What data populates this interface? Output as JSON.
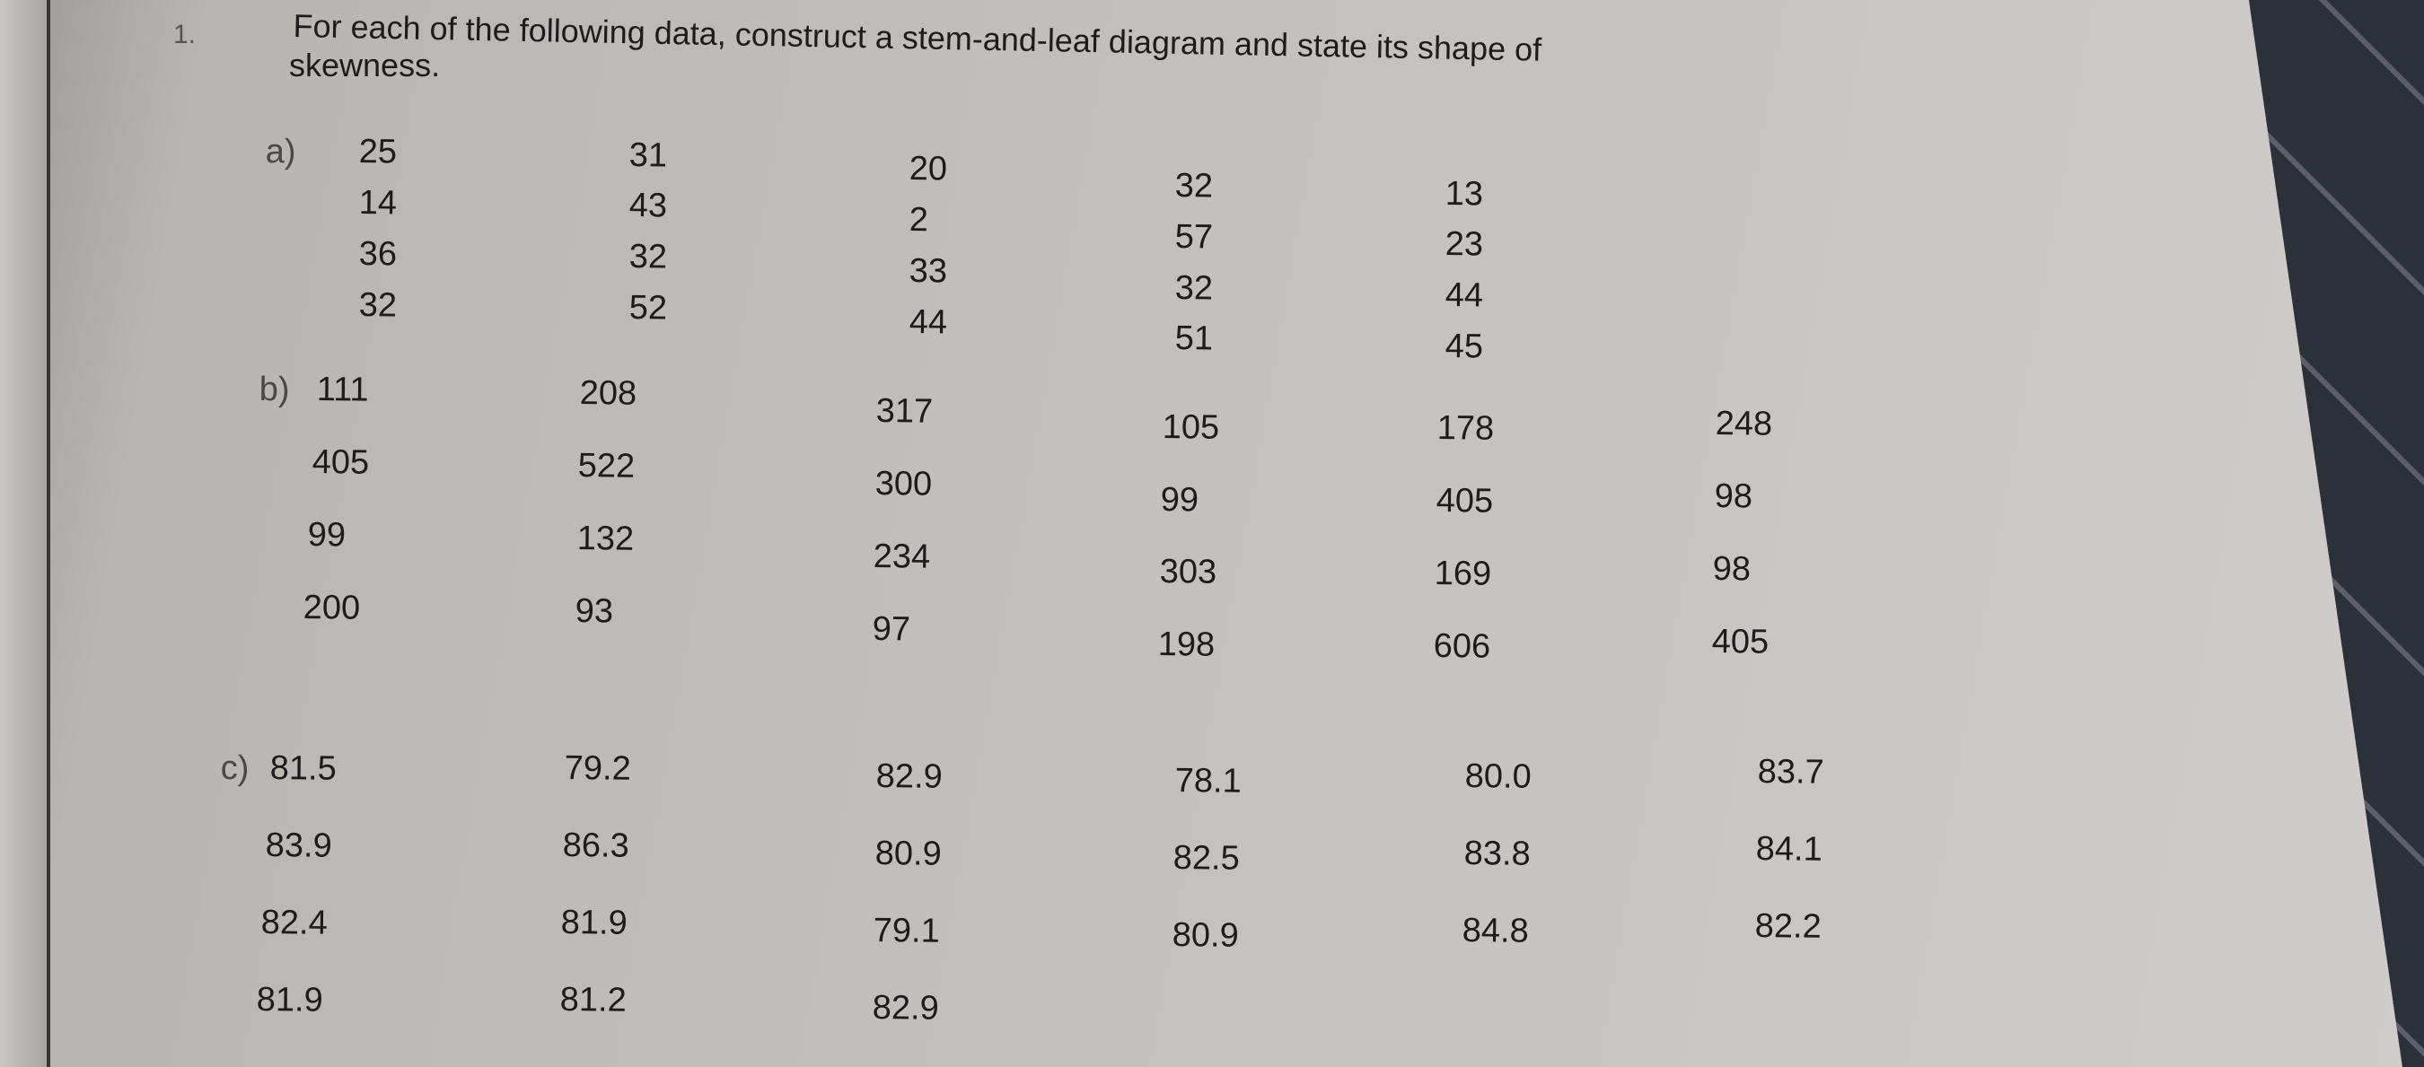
{
  "question": {
    "number": "1.",
    "text_line1": "For each of the following data, construct a stem-and-leaf diagram and state its shape of",
    "text_line2": "skewness."
  },
  "parts": [
    {
      "label": "a)",
      "columns": [
        [
          "25",
          "14",
          "36",
          "32"
        ],
        [
          "31",
          "43",
          "32",
          "52"
        ],
        [
          "20",
          "2",
          "33",
          "44"
        ],
        [
          "32",
          "57",
          "32",
          "51"
        ],
        [
          "13",
          "23",
          "44",
          "45"
        ]
      ]
    },
    {
      "label": "b)",
      "columns": [
        [
          "111",
          "405",
          "99",
          "200"
        ],
        [
          "208",
          "522",
          "132",
          "93"
        ],
        [
          "317",
          "300",
          "234",
          "97"
        ],
        [
          "105",
          "99",
          "303",
          "198"
        ],
        [
          "178",
          "405",
          "169",
          "606"
        ],
        [
          "248",
          "98",
          "98",
          "405"
        ]
      ]
    },
    {
      "label": "c)",
      "columns": [
        [
          "81.5",
          "83.9",
          "82.4",
          "81.9"
        ],
        [
          "79.2",
          "86.3",
          "81.9",
          "81.2"
        ],
        [
          "82.9",
          "80.9",
          "79.1",
          "82.9"
        ],
        [
          "78.1",
          "82.5",
          "80.9"
        ],
        [
          "80.0",
          "83.8",
          "84.8"
        ],
        [
          "83.7",
          "84.1",
          "82.2"
        ]
      ]
    }
  ]
}
